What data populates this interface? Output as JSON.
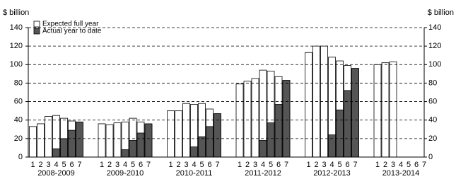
{
  "chart_data": {
    "type": "bar",
    "y_label": "$ billion",
    "y2_label": "$ billion",
    "groups": [
      "2008-2009",
      "2009-2010",
      "2010-2011",
      "2011-2012",
      "2012-2013",
      "2013-2014"
    ],
    "categories": [
      "1",
      "2",
      "3",
      "4",
      "5",
      "6",
      "7",
      "1",
      "2",
      "3",
      "4",
      "5",
      "6",
      "7",
      "1",
      "2",
      "3",
      "4",
      "5",
      "6",
      "7",
      "1",
      "2",
      "3",
      "4",
      "5",
      "6",
      "7",
      "1",
      "2",
      "3",
      "4",
      "5",
      "6",
      "7",
      "1",
      "2",
      "3",
      "4",
      "5",
      "6",
      "7"
    ],
    "series": [
      {
        "name": "Expected full year",
        "color": "#ffffff",
        "values": [
          33,
          36,
          44,
          45,
          42,
          39,
          37,
          36,
          35,
          37,
          38,
          42,
          38,
          35,
          50,
          50,
          58,
          57,
          58,
          52,
          46,
          79,
          82,
          85,
          94,
          93,
          87,
          82,
          113,
          120,
          120,
          108,
          104,
          99,
          95,
          100,
          102,
          103,
          null,
          null,
          null,
          null
        ]
      },
      {
        "name": "Actual year to date",
        "color": "#555555",
        "values": [
          null,
          null,
          null,
          9,
          20,
          29,
          38,
          null,
          null,
          null,
          8,
          18,
          26,
          36,
          null,
          null,
          null,
          11,
          22,
          33,
          47,
          null,
          null,
          null,
          18,
          37,
          57,
          83,
          null,
          null,
          null,
          24,
          51,
          72,
          96,
          null,
          null,
          null,
          null,
          null,
          null,
          null
        ]
      }
    ],
    "ylim": [
      0,
      140
    ],
    "yticks": [
      0,
      20,
      40,
      60,
      80,
      100,
      120,
      140
    ],
    "y2lim": [
      0,
      140
    ],
    "y2ticks": [
      0,
      20,
      40,
      60,
      80,
      100,
      120,
      140
    ],
    "grid": true
  }
}
